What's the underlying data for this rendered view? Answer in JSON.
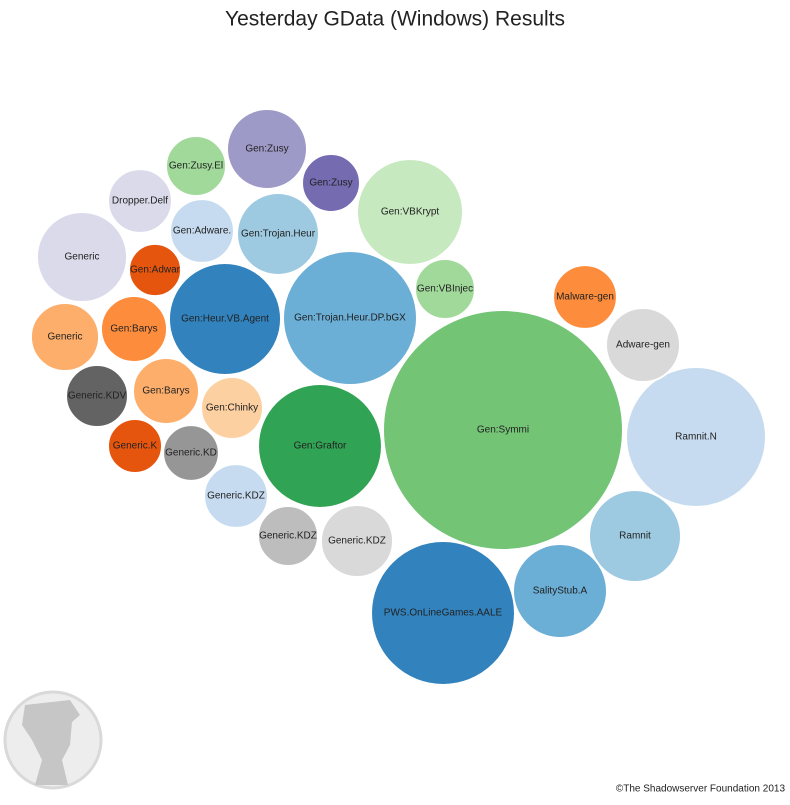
{
  "chart_data": {
    "type": "bubble",
    "title": "Yesterday GData (Windows) Results",
    "credit": "©The Shadowserver Foundation 2013",
    "labels": [
      "Gen:Symmi",
      "PWS.OnLineGames.AALE",
      "Ramnit.N",
      "Gen:Trojan.Heur.DP.bGX",
      "Gen:Graftor",
      "Gen:Heur.VB.Agent",
      "Gen:VBKrypt",
      "Ramnit",
      "SalityStub.A",
      "Generic",
      "Gen:Zusy",
      "Gen:Trojan.Heur",
      "Adware-gen",
      "Generic",
      "Generic.KDV",
      "Generic.KDZ",
      "Gen:Barys",
      "Gen:Barys",
      "Gen:Chinky",
      "Gen:Adware.",
      "Dropper.Delf",
      "Generic.KDZ",
      "Malware-gen",
      "Gen:Zusy.El",
      "Gen:VBInjec",
      "Generic.KDZ",
      "Generic.KD",
      "Gen:Zusy",
      "Gen:Adwar",
      "Generic.K"
    ],
    "values": [
      144,
      51.8,
      49,
      44.9,
      38.4,
      31.4,
      28.1,
      21.2,
      22.1,
      20.3,
      16,
      16.8,
      13.7,
      11.6,
      9.6,
      13,
      10.9,
      10.9,
      9.6,
      10.2,
      10.2,
      10.2,
      10.2,
      9,
      9,
      9,
      7.8,
      8.4,
      6.8,
      7.3
    ],
    "colors": [
      "#74c476",
      "#3182bd",
      "#c6dbef",
      "#6baed6",
      "#31a354",
      "#3182bd",
      "#c7e9c0",
      "#9ecae1",
      "#6baed6",
      "#dadaeb",
      "#9e9ac8",
      "#9ecae1",
      "#d9d9d9",
      "#fdae6b",
      "#636363",
      "#d9d9d9",
      "#fd8d3c",
      "#fdae6b",
      "#fdd0a2",
      "#c6dbef",
      "#dadaeb",
      "#c6dbef",
      "#fd8d3c",
      "#a1d99b",
      "#a1d99b",
      "#bdbdbd",
      "#969696",
      "#756bb1",
      "#e6550d",
      "#e6550d"
    ]
  }
}
